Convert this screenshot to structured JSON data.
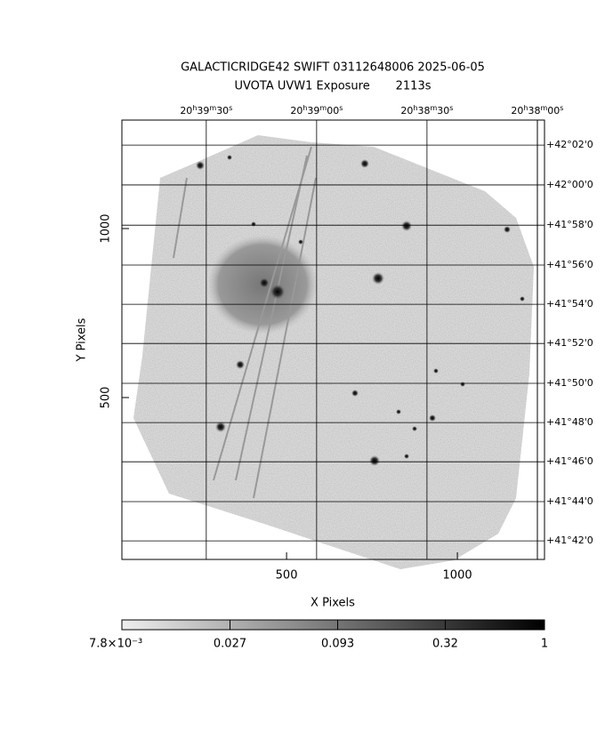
{
  "chart_data": {
    "type": "image",
    "title": "GALACTICRIDGE42 SWIFT 03112648006 2025-06-05",
    "subtitle": "UVOTA UVW1 Exposure       2113s",
    "x_label": "X Pixels",
    "y_label": "Y Pixels",
    "xlim": [
      18,
      1255
    ],
    "ylim": [
      21,
      1321
    ],
    "xticks": [
      500,
      1000
    ],
    "yticks": [
      500,
      1000
    ],
    "ra_ticks": [
      {
        "value": 265,
        "label": "20h39m30s"
      },
      {
        "value": 588,
        "label": "20h39m00s"
      },
      {
        "value": 911,
        "label": "20h38m30s"
      },
      {
        "value": 1234,
        "label": "20h38m00s"
      }
    ],
    "dec_ticks": [
      {
        "value": 1247,
        "label": "+42°02'0"
      },
      {
        "value": 1129,
        "label": "+42°00'0"
      },
      {
        "value": 1010,
        "label": "+41°58'0"
      },
      {
        "value": 892,
        "label": "+41°56'0"
      },
      {
        "value": 776,
        "label": "+41°54'0"
      },
      {
        "value": 660,
        "label": "+41°52'0"
      },
      {
        "value": 542,
        "label": "+41°50'0"
      },
      {
        "value": 426,
        "label": "+41°48'0"
      },
      {
        "value": 310,
        "label": "+41°46'0"
      },
      {
        "value": 192,
        "label": "+41°44'0"
      },
      {
        "value": 76,
        "label": "+41°42'0"
      }
    ],
    "colorbar": {
      "log": true,
      "lim": [
        0.0078,
        1
      ],
      "ticks": [
        {
          "value": 0.0078,
          "label": "7.8×10⁻³"
        },
        0.027,
        0.093,
        0.32,
        1
      ]
    }
  }
}
